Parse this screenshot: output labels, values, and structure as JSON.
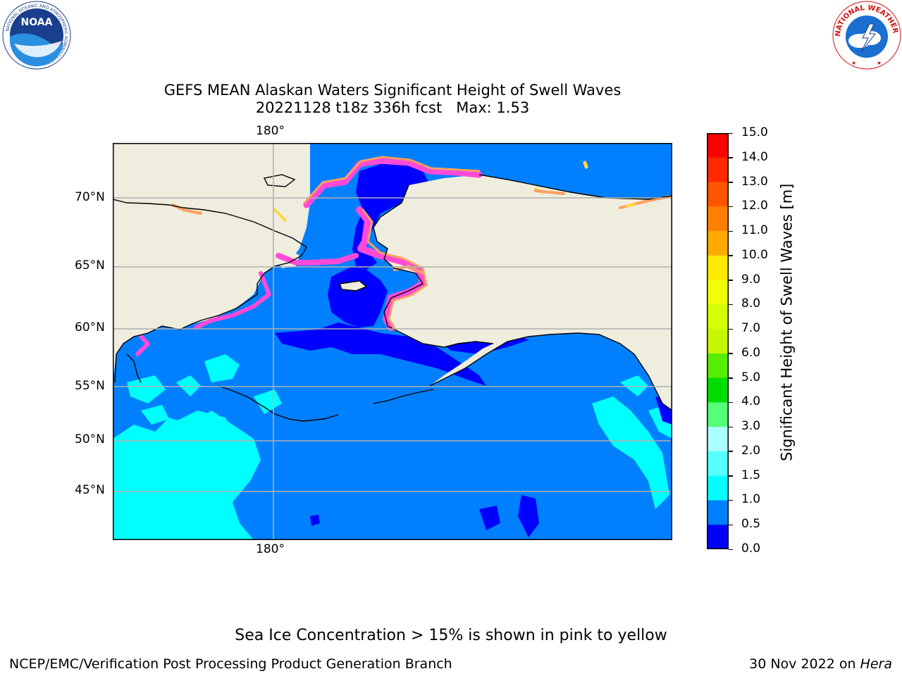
{
  "title": {
    "line1": "GEFS MEAN Alaskan Waters Significant Height of Swell Waves",
    "line2": "20221128 t18z 336h fcst",
    "max": "Max: 1.53"
  },
  "map": {
    "lon_label_top": "180°",
    "lon_label_bottom": "180°",
    "lat_labels": [
      "70°N",
      "65°N",
      "60°N",
      "55°N",
      "50°N",
      "45°N"
    ],
    "colors": {
      "land": "#efedde",
      "ocean_0_0p5": "#0000ff",
      "ocean_0p5_1": "#0080ff",
      "ocean_1_1p5": "#00ffff",
      "ice_pink": "#ff4ad8",
      "ice_orange": "#ff9f60",
      "ice_yellow": "#ffd840",
      "grid": "#b0b0b0",
      "coast": "#000000"
    }
  },
  "colorbar": {
    "label": "Significant Height of Swell Waves [m]",
    "ticks": [
      "15.0",
      "14.0",
      "13.0",
      "12.0",
      "11.0",
      "10.0",
      "9.0",
      "8.0",
      "7.0",
      "6.0",
      "5.0",
      "4.0",
      "3.0",
      "2.0",
      "1.5",
      "1.0",
      "0.5",
      "0.0"
    ],
    "bands": [
      {
        "from": "14.0",
        "to": "15.0",
        "color": "#ff0000"
      },
      {
        "from": "13.0",
        "to": "14.0",
        "color": "#ff2a00"
      },
      {
        "from": "12.0",
        "to": "13.0",
        "color": "#ff5500"
      },
      {
        "from": "11.0",
        "to": "12.0",
        "color": "#ff8000"
      },
      {
        "from": "10.0",
        "to": "11.0",
        "color": "#ffaa00"
      },
      {
        "from": "9.0",
        "to": "10.0",
        "color": "#ffea00"
      },
      {
        "from": "8.0",
        "to": "9.0",
        "color": "#f2ff00"
      },
      {
        "from": "7.0",
        "to": "8.0",
        "color": "#d5ff00"
      },
      {
        "from": "6.0",
        "to": "7.0",
        "color": "#c6f700"
      },
      {
        "from": "5.0",
        "to": "6.0",
        "color": "#55ee00"
      },
      {
        "from": "4.0",
        "to": "5.0",
        "color": "#00dd00"
      },
      {
        "from": "3.0",
        "to": "4.0",
        "color": "#55ff77"
      },
      {
        "from": "2.0",
        "to": "3.0",
        "color": "#aaffff"
      },
      {
        "from": "1.5",
        "to": "2.0",
        "color": "#55ffff"
      },
      {
        "from": "1.0",
        "to": "1.5",
        "color": "#00ffff"
      },
      {
        "from": "0.5",
        "to": "1.0",
        "color": "#0080ff"
      },
      {
        "from": "0.0",
        "to": "0.5",
        "color": "#0000ff"
      }
    ]
  },
  "note": "Sea Ice Concentration > 15% is shown in pink to yellow",
  "footer": {
    "left": "NCEP/EMC/Verification Post Processing Product Generation Branch",
    "date": "30 Nov 2022 on ",
    "machine": "Hera"
  },
  "logos": {
    "noaa_text": "NOAA",
    "noaa_ring_top": "NATIONAL OCEANIC AND ATMOSPHERIC ADMINISTRATION",
    "noaa_ring_bottom": "U.S. DEPARTMENT OF COMMERCE",
    "nws_ring_text": "NATIONAL WEATHER SERVICE"
  }
}
